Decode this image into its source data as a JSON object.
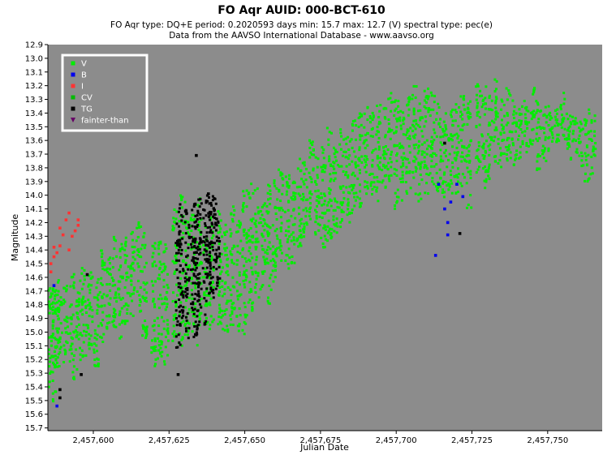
{
  "chart_data": {
    "type": "scatter",
    "title": "FO Aqr   AUID: 000-BCT-610",
    "subtitle_line1": "FO Aqr   type: DQ+E   period: 0.2020593 days   min: 15.7   max: 12.7 (V)   spectral type: pec(e)",
    "subtitle_line2": "Data from the AAVSO International Database - www.aavso.org",
    "xlabel": "Julian Date",
    "ylabel": "Magnitude",
    "xlim": [
      2457585,
      2457768
    ],
    "ylim": [
      15.72,
      12.9
    ],
    "y_inverted": true,
    "x_ticks": [
      2457600,
      2457625,
      2457650,
      2457675,
      2457700,
      2457725,
      2457750
    ],
    "x_tick_labels": [
      "2,457,600",
      "2,457,625",
      "2,457,650",
      "2,457,675",
      "2,457,700",
      "2,457,725",
      "2,457,750"
    ],
    "y_ticks": [
      12.9,
      13.0,
      13.1,
      13.2,
      13.3,
      13.4,
      13.5,
      13.6,
      13.7,
      13.8,
      13.9,
      14.0,
      14.1,
      14.2,
      14.3,
      14.4,
      14.5,
      14.6,
      14.7,
      14.8,
      14.9,
      15.0,
      15.1,
      15.2,
      15.3,
      15.4,
      15.5,
      15.6,
      15.7
    ],
    "y_tick_labels": [
      "12.9",
      "13.0",
      "13.1",
      "13.2",
      "13.3",
      "13.4",
      "13.5",
      "13.6",
      "13.7",
      "13.8",
      "13.9",
      "14.0",
      "14.1",
      "14.2",
      "14.3",
      "14.4",
      "14.5",
      "14.6",
      "14.7",
      "14.8",
      "14.9",
      "15.0",
      "15.1",
      "15.2",
      "15.3",
      "15.4",
      "15.5",
      "15.6",
      "15.7"
    ],
    "grid": false,
    "legend_position": "top-left",
    "plot_background": "#8c8c8c",
    "series": [
      {
        "name": "V",
        "color": "#00ee00",
        "marker": "square",
        "bands": [
          [
            2457586,
            14.65,
            15.55
          ],
          [
            2457587,
            14.7,
            15.45
          ],
          [
            2457588,
            14.62,
            15.3
          ],
          [
            2457589,
            14.7,
            15.2
          ],
          [
            2457591,
            14.65,
            15.25
          ],
          [
            2457593,
            14.55,
            15.35
          ],
          [
            2457595,
            14.6,
            15.3
          ],
          [
            2457597,
            14.5,
            15.2
          ],
          [
            2457599,
            14.45,
            15.15
          ],
          [
            2457601,
            14.55,
            15.3
          ],
          [
            2457603,
            14.4,
            15.1
          ],
          [
            2457605,
            14.45,
            15.05
          ],
          [
            2457607,
            14.3,
            15.0
          ],
          [
            2457609,
            14.35,
            15.05
          ],
          [
            2457611,
            14.3,
            14.95
          ],
          [
            2457613,
            14.25,
            14.9
          ],
          [
            2457615,
            14.2,
            14.85
          ],
          [
            2457617,
            14.25,
            15.05
          ],
          [
            2457620,
            14.35,
            15.25
          ],
          [
            2457622,
            14.3,
            15.2
          ],
          [
            2457624,
            14.35,
            15.25
          ],
          [
            2457627,
            14.1,
            15.15
          ],
          [
            2457629,
            14.0,
            15.1
          ],
          [
            2457631,
            14.05,
            15.05
          ],
          [
            2457633,
            14.1,
            15.0
          ],
          [
            2457635,
            14.0,
            15.1
          ],
          [
            2457637,
            14.2,
            14.95
          ],
          [
            2457639,
            14.15,
            15.0
          ],
          [
            2457642,
            14.1,
            15.0
          ],
          [
            2457644,
            14.2,
            15.0
          ],
          [
            2457646,
            14.05,
            14.95
          ],
          [
            2457648,
            14.15,
            15.0
          ],
          [
            2457650,
            13.95,
            15.05
          ],
          [
            2457652,
            13.9,
            14.9
          ],
          [
            2457654,
            13.95,
            14.75
          ],
          [
            2457656,
            14.0,
            14.7
          ],
          [
            2457658,
            13.9,
            14.8
          ],
          [
            2457660,
            13.85,
            14.65
          ],
          [
            2457662,
            13.8,
            14.5
          ],
          [
            2457664,
            13.85,
            14.55
          ],
          [
            2457666,
            13.9,
            14.5
          ],
          [
            2457668,
            13.7,
            14.4
          ],
          [
            2457670,
            13.75,
            14.35
          ],
          [
            2457672,
            13.6,
            14.2
          ],
          [
            2457674,
            13.65,
            14.3
          ],
          [
            2457676,
            13.55,
            14.4
          ],
          [
            2457678,
            13.5,
            14.35
          ],
          [
            2457680,
            13.6,
            14.3
          ],
          [
            2457682,
            13.5,
            14.25
          ],
          [
            2457684,
            13.55,
            14.2
          ],
          [
            2457686,
            13.45,
            14.15
          ],
          [
            2457688,
            13.4,
            14.1
          ],
          [
            2457690,
            13.35,
            14.0
          ],
          [
            2457692,
            13.4,
            14.0
          ],
          [
            2457694,
            13.3,
            14.05
          ],
          [
            2457696,
            13.35,
            13.95
          ],
          [
            2457698,
            13.25,
            13.9
          ],
          [
            2457700,
            13.3,
            14.1
          ],
          [
            2457702,
            13.35,
            14.05
          ],
          [
            2457704,
            13.25,
            14.0
          ],
          [
            2457706,
            13.2,
            14.0
          ],
          [
            2457708,
            13.3,
            14.05
          ],
          [
            2457710,
            13.2,
            14.0
          ],
          [
            2457712,
            13.25,
            13.95
          ],
          [
            2457714,
            13.3,
            14.0
          ],
          [
            2457716,
            13.4,
            14.05
          ],
          [
            2457718,
            13.35,
            14.0
          ],
          [
            2457720,
            13.3,
            14.0
          ],
          [
            2457722,
            13.25,
            13.95
          ],
          [
            2457724,
            13.3,
            14.1
          ],
          [
            2457727,
            13.15,
            13.85
          ],
          [
            2457729,
            13.2,
            13.95
          ],
          [
            2457731,
            13.25,
            13.9
          ],
          [
            2457733,
            13.15,
            13.8
          ],
          [
            2457735,
            13.3,
            13.8
          ],
          [
            2457737,
            13.2,
            13.75
          ],
          [
            2457739,
            13.3,
            13.8
          ],
          [
            2457741,
            13.35,
            13.75
          ],
          [
            2457743,
            13.3,
            13.7
          ],
          [
            2457745,
            13.2,
            13.65
          ],
          [
            2457747,
            13.3,
            13.85
          ],
          [
            2457749,
            13.35,
            13.75
          ],
          [
            2457751,
            13.3,
            13.7
          ],
          [
            2457753,
            13.35,
            13.65
          ],
          [
            2457755,
            13.25,
            13.6
          ],
          [
            2457757,
            13.3,
            13.75
          ],
          [
            2457759,
            13.4,
            13.7
          ],
          [
            2457761,
            13.45,
            13.8
          ],
          [
            2457763,
            13.35,
            13.9
          ],
          [
            2457765,
            13.4,
            13.85
          ]
        ]
      },
      {
        "name": "B",
        "color": "#0000ee",
        "marker": "square",
        "points": [
          [
            2457587,
            14.66
          ],
          [
            2457588,
            15.54
          ],
          [
            2457713,
            14.44
          ],
          [
            2457714,
            13.92
          ],
          [
            2457716,
            14.1
          ],
          [
            2457717,
            14.2
          ],
          [
            2457717,
            14.29
          ],
          [
            2457718,
            14.05
          ],
          [
            2457720,
            13.92
          ],
          [
            2457722,
            14.01
          ]
        ]
      },
      {
        "name": "I",
        "color": "#ff3333",
        "marker": "square",
        "points": [
          [
            2457586,
            14.5
          ],
          [
            2457587,
            14.38
          ],
          [
            2457587,
            14.45
          ],
          [
            2457588,
            14.42
          ],
          [
            2457589,
            14.37
          ],
          [
            2457590,
            14.29
          ],
          [
            2457591,
            14.18
          ],
          [
            2457592,
            14.13
          ],
          [
            2457593,
            14.3
          ],
          [
            2457594,
            14.26
          ],
          [
            2457595,
            14.22
          ],
          [
            2457586,
            14.56
          ],
          [
            2457589,
            14.24
          ],
          [
            2457592,
            14.4
          ],
          [
            2457595,
            14.18
          ]
        ]
      },
      {
        "name": "CV",
        "color": "#00bb00",
        "marker": "square",
        "points": []
      },
      {
        "name": "TG",
        "color": "#000000",
        "marker": "square",
        "bands": [
          [
            2457628,
            14.2,
            15.12
          ],
          [
            2457629,
            14.05,
            14.95
          ],
          [
            2457631,
            14.1,
            15.05
          ],
          [
            2457633,
            14.05,
            14.85
          ],
          [
            2457634,
            14.1,
            15.1
          ],
          [
            2457635,
            14.0,
            15.0
          ],
          [
            2457637,
            14.1,
            14.95
          ],
          [
            2457638,
            14.0,
            14.7
          ],
          [
            2457639,
            14.05,
            14.8
          ],
          [
            2457640,
            14.0,
            14.6
          ],
          [
            2457641,
            14.1,
            14.7
          ]
        ],
        "points": [
          [
            2457589,
            15.42
          ],
          [
            2457589,
            15.48
          ],
          [
            2457596,
            15.31
          ],
          [
            2457598,
            14.58
          ],
          [
            2457634,
            13.71
          ],
          [
            2457628,
            15.31
          ],
          [
            2457638,
            13.99
          ],
          [
            2457716,
            13.62
          ],
          [
            2457721,
            14.28
          ]
        ]
      },
      {
        "name": "fainter-than",
        "color": "#660066",
        "marker": "triangle-down",
        "points": []
      }
    ]
  }
}
